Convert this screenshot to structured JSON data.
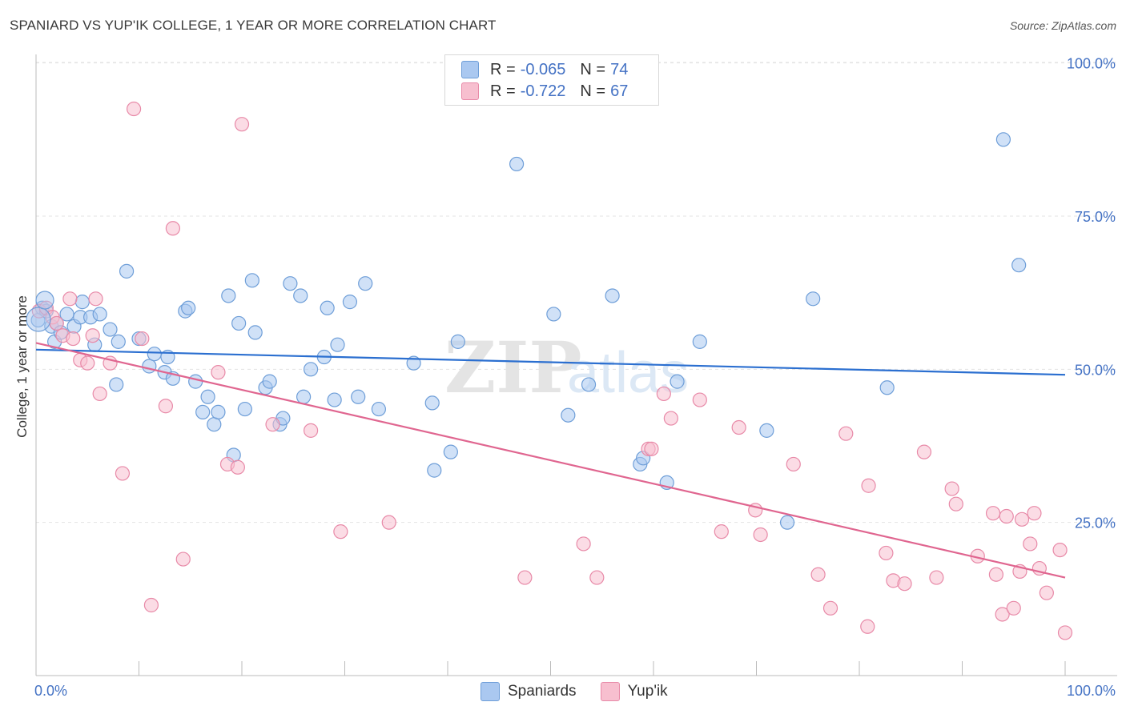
{
  "title": "SPANIARD VS YUP'IK COLLEGE, 1 YEAR OR MORE CORRELATION CHART",
  "source": "Source: ZipAtlas.com",
  "watermark_main": "ZIP",
  "watermark_sub": "atlas",
  "legend": {
    "r_label": "R =",
    "n_label": "N =",
    "rows": [
      {
        "r": "-0.065",
        "n": "74",
        "color": "#aac8f0",
        "border": "#6e9ed8"
      },
      {
        "r": "-0.722",
        "n": "67",
        "color": "#f7bfcf",
        "border": "#e88aa8"
      }
    ]
  },
  "bottom_legend": [
    {
      "label": "Spaniards",
      "color": "#aac8f0",
      "border": "#6e9ed8"
    },
    {
      "label": "Yup'ik",
      "color": "#f7bfcf",
      "border": "#e88aa8"
    }
  ],
  "chart_data": {
    "type": "scatter",
    "title": "SPANIARD VS YUP'IK COLLEGE, 1 YEAR OR MORE CORRELATION CHART",
    "xlabel": "",
    "ylabel": "College, 1 year or more",
    "xlim": [
      0,
      100
    ],
    "ylim": [
      0,
      105
    ],
    "x_tick_labels": [
      "0.0%",
      "100.0%"
    ],
    "y_ticks": [
      25,
      50,
      75,
      100
    ],
    "y_tick_labels": [
      "25.0%",
      "50.0%",
      "75.0%",
      "100.0%"
    ],
    "grid": true,
    "legend_position": "top-center",
    "series": [
      {
        "name": "Spaniards",
        "color": "#6e9ed8",
        "fill": "#aac8f0",
        "trend": {
          "x": [
            0,
            100
          ],
          "y": [
            53.2,
            49.1
          ],
          "color": "#2b6fd0"
        },
        "points": [
          [
            0.2,
            58.0
          ],
          [
            0.6,
            60.0
          ],
          [
            1.0,
            59.5
          ],
          [
            1.5,
            57.0
          ],
          [
            1.8,
            54.5
          ],
          [
            2.0,
            57.5
          ],
          [
            2.4,
            56.0
          ],
          [
            3.0,
            59.0
          ],
          [
            3.7,
            57.0
          ],
          [
            4.3,
            58.5
          ],
          [
            4.5,
            61.0
          ],
          [
            5.3,
            58.5
          ],
          [
            5.7,
            54.0
          ],
          [
            6.2,
            59.0
          ],
          [
            7.2,
            56.5
          ],
          [
            7.8,
            47.5
          ],
          [
            8.0,
            54.5
          ],
          [
            8.8,
            66.0
          ],
          [
            10.0,
            55.0
          ],
          [
            11.0,
            50.5
          ],
          [
            11.5,
            52.5
          ],
          [
            12.5,
            49.5
          ],
          [
            12.8,
            52.0
          ],
          [
            13.3,
            48.5
          ],
          [
            14.5,
            59.5
          ],
          [
            14.8,
            60.0
          ],
          [
            15.5,
            48.0
          ],
          [
            16.2,
            43.0
          ],
          [
            16.7,
            45.5
          ],
          [
            17.3,
            41.0
          ],
          [
            17.7,
            43.0
          ],
          [
            18.7,
            62.0
          ],
          [
            19.2,
            36.0
          ],
          [
            19.7,
            57.5
          ],
          [
            20.3,
            43.5
          ],
          [
            21.0,
            64.5
          ],
          [
            21.3,
            56.0
          ],
          [
            22.3,
            47.0
          ],
          [
            22.7,
            48.0
          ],
          [
            23.7,
            41.0
          ],
          [
            24.0,
            42.0
          ],
          [
            24.7,
            64.0
          ],
          [
            25.7,
            62.0
          ],
          [
            26.0,
            45.5
          ],
          [
            26.7,
            50.0
          ],
          [
            28.0,
            52.0
          ],
          [
            28.3,
            60.0
          ],
          [
            29.0,
            45.0
          ],
          [
            29.3,
            54.0
          ],
          [
            30.5,
            61.0
          ],
          [
            31.3,
            45.5
          ],
          [
            32.0,
            64.0
          ],
          [
            33.3,
            43.5
          ],
          [
            36.7,
            51.0
          ],
          [
            38.5,
            44.5
          ],
          [
            38.7,
            33.5
          ],
          [
            40.3,
            36.5
          ],
          [
            41.0,
            54.5
          ],
          [
            46.7,
            83.5
          ],
          [
            50.3,
            59.0
          ],
          [
            51.7,
            42.5
          ],
          [
            53.7,
            47.5
          ],
          [
            56.0,
            62.0
          ],
          [
            58.7,
            34.5
          ],
          [
            59.0,
            35.5
          ],
          [
            61.3,
            31.5
          ],
          [
            62.3,
            48.0
          ],
          [
            64.5,
            54.5
          ],
          [
            71.0,
            40.0
          ],
          [
            73.0,
            25.0
          ],
          [
            75.5,
            61.5
          ],
          [
            82.7,
            47.0
          ],
          [
            94.0,
            87.5
          ],
          [
            95.5,
            67.0
          ]
        ]
      },
      {
        "name": "Yup'ik",
        "color": "#e88aa8",
        "fill": "#f7bfcf",
        "trend": {
          "x": [
            0,
            100
          ],
          "y": [
            54.3,
            16.0
          ],
          "color": "#e06690"
        },
        "points": [
          [
            0.3,
            59.5
          ],
          [
            1.0,
            60.0
          ],
          [
            1.6,
            58.5
          ],
          [
            2.0,
            57.5
          ],
          [
            2.6,
            55.5
          ],
          [
            3.3,
            61.5
          ],
          [
            3.6,
            55.0
          ],
          [
            4.3,
            51.5
          ],
          [
            5.0,
            51.0
          ],
          [
            5.8,
            61.5
          ],
          [
            5.5,
            55.5
          ],
          [
            6.2,
            46.0
          ],
          [
            7.2,
            51.0
          ],
          [
            8.4,
            33.0
          ],
          [
            9.5,
            92.5
          ],
          [
            10.3,
            55.0
          ],
          [
            11.2,
            11.5
          ],
          [
            12.6,
            44.0
          ],
          [
            13.3,
            73.0
          ],
          [
            14.3,
            19.0
          ],
          [
            17.7,
            49.5
          ],
          [
            18.6,
            34.5
          ],
          [
            19.6,
            34.0
          ],
          [
            20.0,
            90.0
          ],
          [
            23.0,
            41.0
          ],
          [
            26.7,
            40.0
          ],
          [
            29.6,
            23.5
          ],
          [
            34.3,
            25.0
          ],
          [
            47.5,
            16.0
          ],
          [
            53.2,
            21.5
          ],
          [
            54.5,
            16.0
          ],
          [
            59.5,
            37.0
          ],
          [
            59.8,
            37.0
          ],
          [
            61.0,
            46.0
          ],
          [
            61.7,
            42.0
          ],
          [
            64.5,
            45.0
          ],
          [
            66.6,
            23.5
          ],
          [
            68.3,
            40.5
          ],
          [
            69.9,
            27.0
          ],
          [
            70.4,
            23.0
          ],
          [
            73.6,
            34.5
          ],
          [
            76.0,
            16.5
          ],
          [
            77.2,
            11.0
          ],
          [
            78.7,
            39.5
          ],
          [
            80.9,
            31.0
          ],
          [
            80.8,
            8.0
          ],
          [
            82.6,
            20.0
          ],
          [
            83.3,
            15.5
          ],
          [
            84.4,
            15.0
          ],
          [
            86.3,
            36.5
          ],
          [
            87.5,
            16.0
          ],
          [
            89.0,
            30.5
          ],
          [
            89.4,
            28.0
          ],
          [
            91.5,
            19.5
          ],
          [
            93.0,
            26.5
          ],
          [
            93.3,
            16.5
          ],
          [
            93.9,
            10.0
          ],
          [
            94.3,
            26.0
          ],
          [
            95.0,
            11.0
          ],
          [
            95.6,
            17.0
          ],
          [
            95.8,
            25.5
          ],
          [
            96.6,
            21.5
          ],
          [
            97.0,
            26.5
          ],
          [
            97.5,
            17.5
          ],
          [
            98.2,
            13.5
          ],
          [
            99.5,
            20.5
          ],
          [
            100.0,
            7.0
          ]
        ]
      }
    ]
  }
}
